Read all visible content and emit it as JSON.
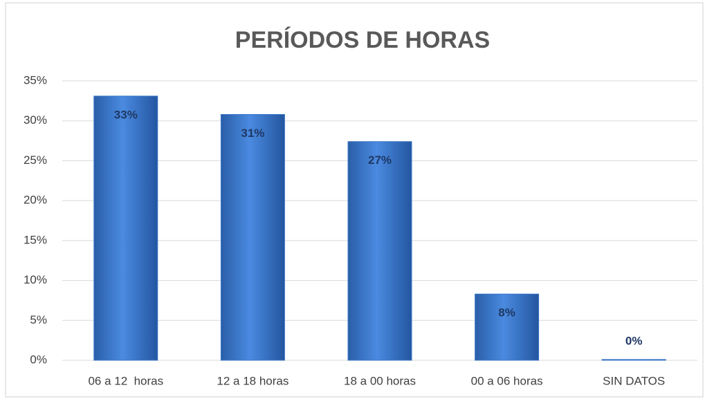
{
  "chart_data": {
    "type": "bar",
    "title": "PERÍODOS DE HORAS",
    "categories": [
      "06 a 12  horas",
      "12 a 18 horas",
      "18 a 00 horas",
      "00 a 06 horas",
      "SIN DATOS"
    ],
    "values": [
      33.1,
      30.8,
      27.4,
      8.3,
      0.1
    ],
    "value_labels": [
      "33%",
      "31%",
      "27%",
      "8%",
      "0%"
    ],
    "color": "#3a78c9",
    "ylim": [
      0,
      35
    ],
    "yticks": [
      {
        "value": 0,
        "label": "0%"
      },
      {
        "value": 5,
        "label": "5%"
      },
      {
        "value": 10,
        "label": "10%"
      },
      {
        "value": 15,
        "label": "15%"
      },
      {
        "value": 20,
        "label": "20%"
      },
      {
        "value": 25,
        "label": "25%"
      },
      {
        "value": 30,
        "label": "30%"
      },
      {
        "value": 35,
        "label": "35%"
      }
    ],
    "grid": true
  }
}
